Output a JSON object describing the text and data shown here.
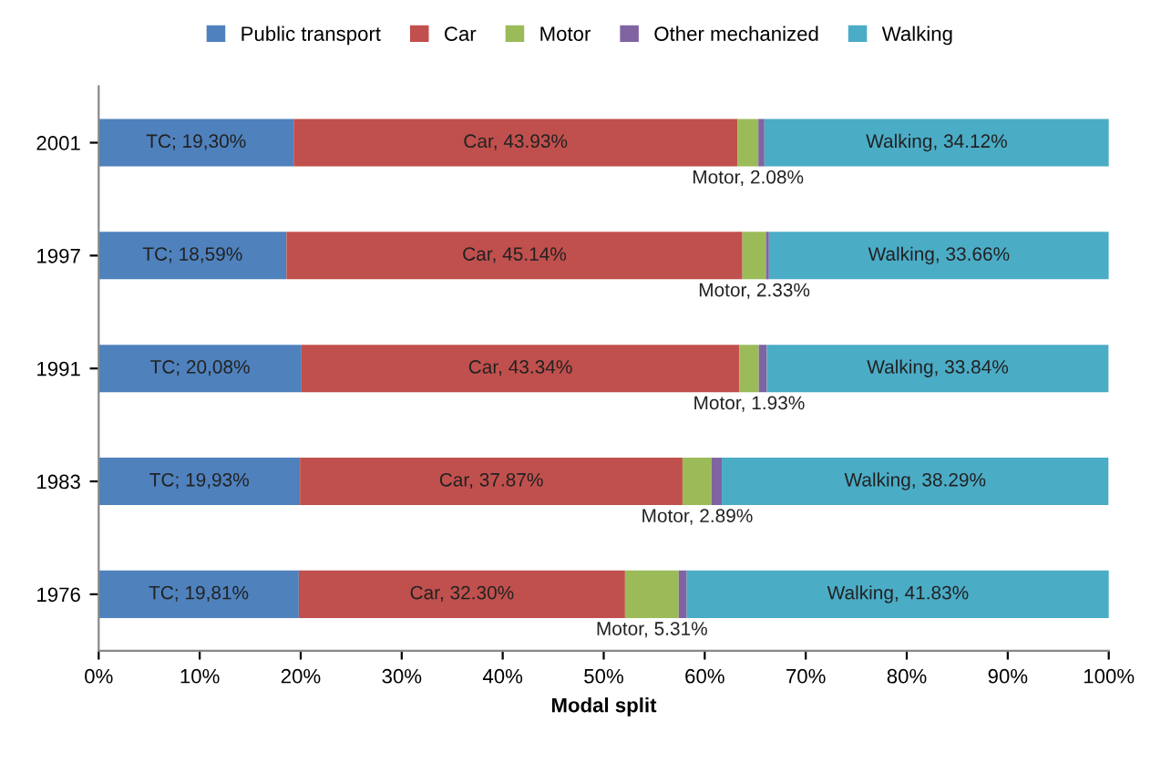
{
  "chart_data": {
    "type": "bar",
    "orientation": "horizontal",
    "stacked": true,
    "xlabel": "Modal split",
    "categories": [
      "2001",
      "1997",
      "1991",
      "1983",
      "1976"
    ],
    "series": [
      {
        "name": "Public transport",
        "color": "#4f81bd",
        "values": [
          19.3,
          18.59,
          20.08,
          19.93,
          19.81
        ],
        "value_labels": [
          "TC; 19,30%",
          "TC; 18,59%",
          "TC; 20,08%",
          "TC; 19,93%",
          "TC; 19,81%"
        ]
      },
      {
        "name": "Car",
        "color": "#c0504d",
        "values": [
          43.93,
          45.14,
          43.34,
          37.87,
          32.3
        ],
        "value_labels": [
          "Car, 43.93%",
          "Car, 45.14%",
          "Car, 43.34%",
          "Car, 37.87%",
          "Car, 32.30%"
        ]
      },
      {
        "name": "Motor",
        "color": "#9bbb59",
        "values": [
          2.08,
          2.33,
          1.93,
          2.89,
          5.31
        ],
        "value_labels": [
          "Motor, 2.08%",
          "Motor, 2.33%",
          "Motor, 1.93%",
          "Motor, 2.89%",
          "Motor, 5.31%"
        ]
      },
      {
        "name": "Other mechanized",
        "color": "#8064a2",
        "values": [
          0.6,
          0.3,
          0.8,
          1.0,
          0.8
        ]
      },
      {
        "name": "Walking",
        "color": "#4bacc6",
        "values": [
          34.12,
          33.66,
          33.84,
          38.29,
          41.83
        ],
        "value_labels": [
          "Walking, 34.12%",
          "Walking, 33.66%",
          "Walking, 33.84%",
          "Walking, 38.29%",
          "Walking, 41.83%"
        ]
      }
    ],
    "xlim": [
      0,
      100
    ],
    "xticks": [
      {
        "value": 0,
        "label": "0%"
      },
      {
        "value": 10,
        "label": "10%"
      },
      {
        "value": 20,
        "label": "20%"
      },
      {
        "value": 30,
        "label": "30%"
      },
      {
        "value": 40,
        "label": "40%"
      },
      {
        "value": 50,
        "label": "50%"
      },
      {
        "value": 60,
        "label": "60%"
      },
      {
        "value": 70,
        "label": "70%"
      },
      {
        "value": 80,
        "label": "80%"
      },
      {
        "value": 90,
        "label": "90%"
      },
      {
        "value": 100,
        "label": "100%"
      }
    ],
    "legend": "top",
    "grid": false
  }
}
